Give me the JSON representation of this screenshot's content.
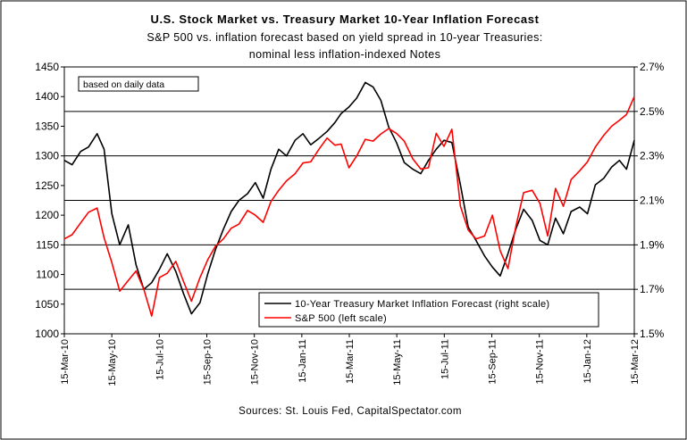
{
  "chart_data": {
    "type": "line",
    "title": "U.S. Stock Market vs. Treasury Market 10-Year Inflation Forecast",
    "subtitle": [
      "S&P 500 vs. inflation forecast based on yield spread in 10-year Treasuries:",
      "nominal less inflation-indexed Notes"
    ],
    "annotation": "based on daily data",
    "source": "Sources: St. Louis Fed, CapitalSpectator.com",
    "grid": true,
    "legend_position": "bottom-right",
    "x_ticks": [
      "15-Mar-10",
      "15-May-10",
      "15-Jul-10",
      "15-Sep-10",
      "15-Nov-10",
      "15-Jan-11",
      "15-Mar-11",
      "15-May-11",
      "15-Jul-11",
      "15-Sep-11",
      "15-Nov-11",
      "15-Jan-12",
      "15-Mar-12"
    ],
    "y_left": {
      "ylim": [
        1000,
        1450
      ],
      "ticks": [
        "1000",
        "1050",
        "1100",
        "1150",
        "1200",
        "1250",
        "1300",
        "1350",
        "1400",
        "1450"
      ]
    },
    "y_right": {
      "ylim": [
        1.5,
        2.7
      ],
      "ticks": [
        "1.5%",
        "1.7%",
        "1.9%",
        "2.1%",
        "2.3%",
        "2.5%",
        "2.7%"
      ]
    },
    "series": [
      {
        "name": "10-Year Treasury Market Inflation Forecast (right scale)",
        "axis": "right",
        "color": "#000000",
        "x": [
          "2010-03-15",
          "2010-03-25",
          "2010-04-05",
          "2010-04-15",
          "2010-04-26",
          "2010-05-05",
          "2010-05-15",
          "2010-05-25",
          "2010-06-05",
          "2010-06-15",
          "2010-06-25",
          "2010-07-05",
          "2010-07-15",
          "2010-07-25",
          "2010-08-05",
          "2010-08-15",
          "2010-08-25",
          "2010-09-05",
          "2010-09-15",
          "2010-09-25",
          "2010-10-05",
          "2010-10-15",
          "2010-10-25",
          "2010-11-05",
          "2010-11-15",
          "2010-11-25",
          "2010-12-05",
          "2010-12-15",
          "2010-12-25",
          "2011-01-05",
          "2011-01-15",
          "2011-01-25",
          "2011-02-05",
          "2011-02-15",
          "2011-02-25",
          "2011-03-05",
          "2011-03-15",
          "2011-03-25",
          "2011-04-05",
          "2011-04-15",
          "2011-04-25",
          "2011-05-05",
          "2011-05-15",
          "2011-05-25",
          "2011-06-05",
          "2011-06-15",
          "2011-06-25",
          "2011-07-05",
          "2011-07-15",
          "2011-07-25",
          "2011-08-05",
          "2011-08-15",
          "2011-08-25",
          "2011-09-05",
          "2011-09-15",
          "2011-09-25",
          "2011-10-05",
          "2011-10-15",
          "2011-10-25",
          "2011-11-05",
          "2011-11-15",
          "2011-11-25",
          "2011-12-05",
          "2011-12-15",
          "2011-12-25",
          "2012-01-05",
          "2012-01-15",
          "2012-01-25",
          "2012-02-05",
          "2012-02-15",
          "2012-02-25",
          "2012-03-05",
          "2012-03-15"
        ],
        "values": [
          2.28,
          2.26,
          2.32,
          2.34,
          2.4,
          2.33,
          2.04,
          1.9,
          1.99,
          1.81,
          1.7,
          1.73,
          1.79,
          1.86,
          1.78,
          1.68,
          1.59,
          1.64,
          1.77,
          1.88,
          1.97,
          2.05,
          2.1,
          2.13,
          2.18,
          2.11,
          2.24,
          2.33,
          2.3,
          2.37,
          2.4,
          2.35,
          2.38,
          2.41,
          2.45,
          2.49,
          2.52,
          2.56,
          2.63,
          2.61,
          2.55,
          2.43,
          2.36,
          2.27,
          2.24,
          2.22,
          2.28,
          2.33,
          2.37,
          2.36,
          2.17,
          1.98,
          1.92,
          1.85,
          1.8,
          1.76,
          1.86,
          1.97,
          2.06,
          2.01,
          1.92,
          1.9,
          2.02,
          1.95,
          2.05,
          2.07,
          2.04,
          2.17,
          2.2,
          2.25,
          2.28,
          2.24,
          2.37
        ]
      },
      {
        "name": "S&P 500 (left scale)",
        "axis": "left",
        "color": "#ff0000",
        "x": [
          "2010-03-15",
          "2010-03-25",
          "2010-04-05",
          "2010-04-15",
          "2010-04-26",
          "2010-05-05",
          "2010-05-15",
          "2010-05-25",
          "2010-06-05",
          "2010-06-15",
          "2010-06-25",
          "2010-07-05",
          "2010-07-15",
          "2010-07-25",
          "2010-08-05",
          "2010-08-15",
          "2010-08-25",
          "2010-09-05",
          "2010-09-15",
          "2010-09-25",
          "2010-10-05",
          "2010-10-15",
          "2010-10-25",
          "2010-11-05",
          "2010-11-15",
          "2010-11-25",
          "2010-12-05",
          "2010-12-15",
          "2010-12-25",
          "2011-01-05",
          "2011-01-15",
          "2011-01-25",
          "2011-02-05",
          "2011-02-15",
          "2011-02-25",
          "2011-03-05",
          "2011-03-15",
          "2011-03-25",
          "2011-04-05",
          "2011-04-15",
          "2011-04-25",
          "2011-05-05",
          "2011-05-15",
          "2011-05-25",
          "2011-06-05",
          "2011-06-15",
          "2011-06-25",
          "2011-07-05",
          "2011-07-15",
          "2011-07-25",
          "2011-08-05",
          "2011-08-15",
          "2011-08-25",
          "2011-09-05",
          "2011-09-15",
          "2011-09-25",
          "2011-10-05",
          "2011-10-15",
          "2011-10-25",
          "2011-11-05",
          "2011-11-15",
          "2011-11-25",
          "2011-12-05",
          "2011-12-15",
          "2011-12-25",
          "2012-01-05",
          "2012-01-15",
          "2012-01-25",
          "2012-02-05",
          "2012-02-15",
          "2012-02-25",
          "2012-03-05",
          "2012-03-15"
        ],
        "values": [
          1160,
          1167,
          1187,
          1205,
          1212,
          1162,
          1120,
          1072,
          1090,
          1106,
          1075,
          1030,
          1095,
          1102,
          1122,
          1088,
          1055,
          1095,
          1125,
          1148,
          1160,
          1178,
          1185,
          1208,
          1200,
          1188,
          1223,
          1242,
          1258,
          1270,
          1288,
          1290,
          1312,
          1330,
          1318,
          1320,
          1280,
          1300,
          1328,
          1325,
          1337,
          1346,
          1338,
          1325,
          1295,
          1278,
          1280,
          1338,
          1316,
          1345,
          1215,
          1175,
          1160,
          1165,
          1200,
          1140,
          1110,
          1180,
          1238,
          1242,
          1220,
          1165,
          1245,
          1215,
          1260,
          1275,
          1290,
          1315,
          1335,
          1350,
          1360,
          1370,
          1400
        ]
      }
    ]
  }
}
